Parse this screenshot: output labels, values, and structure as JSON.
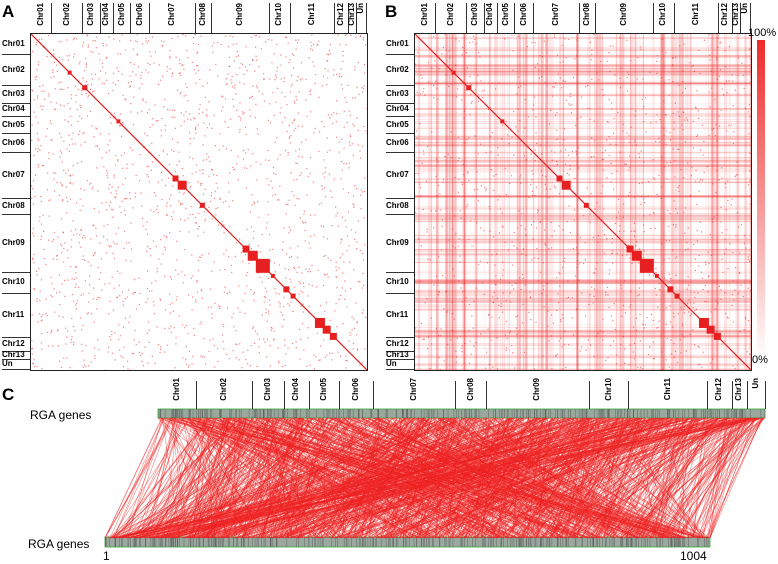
{
  "panels": [
    {
      "letter": "A"
    },
    {
      "letter": "B"
    },
    {
      "letter": "C"
    }
  ],
  "chromosomes": [
    "Chr01",
    "Chr02",
    "Chr03",
    "Chr04",
    "Chr05",
    "Chr06",
    "Chr07",
    "Chr08",
    "Chr09",
    "Chr10",
    "Chr11",
    "Chr12",
    "Chr13",
    "Un"
  ],
  "colorbar": {
    "max_label": "100%",
    "min_label": "0%",
    "color": "#ee2b2b"
  },
  "panel_c": {
    "top_label": "RGA genes",
    "bottom_label": "RGA genes",
    "start_index": "1",
    "end_index": "1004",
    "link_color": "#ee2020"
  }
}
